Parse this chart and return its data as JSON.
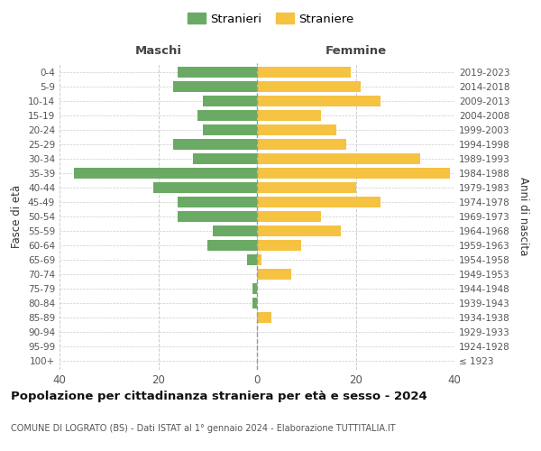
{
  "age_groups": [
    "100+",
    "95-99",
    "90-94",
    "85-89",
    "80-84",
    "75-79",
    "70-74",
    "65-69",
    "60-64",
    "55-59",
    "50-54",
    "45-49",
    "40-44",
    "35-39",
    "30-34",
    "25-29",
    "20-24",
    "15-19",
    "10-14",
    "5-9",
    "0-4"
  ],
  "birth_years": [
    "≤ 1923",
    "1924-1928",
    "1929-1933",
    "1934-1938",
    "1939-1943",
    "1944-1948",
    "1949-1953",
    "1954-1958",
    "1959-1963",
    "1964-1968",
    "1969-1973",
    "1974-1978",
    "1979-1983",
    "1984-1988",
    "1989-1993",
    "1994-1998",
    "1999-2003",
    "2004-2008",
    "2009-2013",
    "2014-2018",
    "2019-2023"
  ],
  "maschi": [
    0,
    0,
    0,
    0,
    1,
    1,
    0,
    2,
    10,
    9,
    16,
    16,
    21,
    37,
    13,
    17,
    11,
    12,
    11,
    17,
    16
  ],
  "femmine": [
    0,
    0,
    0,
    3,
    0,
    0,
    7,
    1,
    9,
    17,
    13,
    25,
    20,
    39,
    33,
    18,
    16,
    13,
    25,
    21,
    19
  ],
  "color_maschi": "#6aaa64",
  "color_femmine": "#f5c242",
  "background_color": "#ffffff",
  "grid_color": "#cccccc",
  "title": "Popolazione per cittadinanza straniera per età e sesso - 2024",
  "subtitle": "COMUNE DI LOGRATO (BS) - Dati ISTAT al 1° gennaio 2024 - Elaborazione TUTTITALIA.IT",
  "xlabel_left": "Maschi",
  "xlabel_right": "Femmine",
  "ylabel_left": "Fasce di età",
  "ylabel_right": "Anni di nascita",
  "legend_maschi": "Stranieri",
  "legend_femmine": "Straniere",
  "xlim": 40
}
